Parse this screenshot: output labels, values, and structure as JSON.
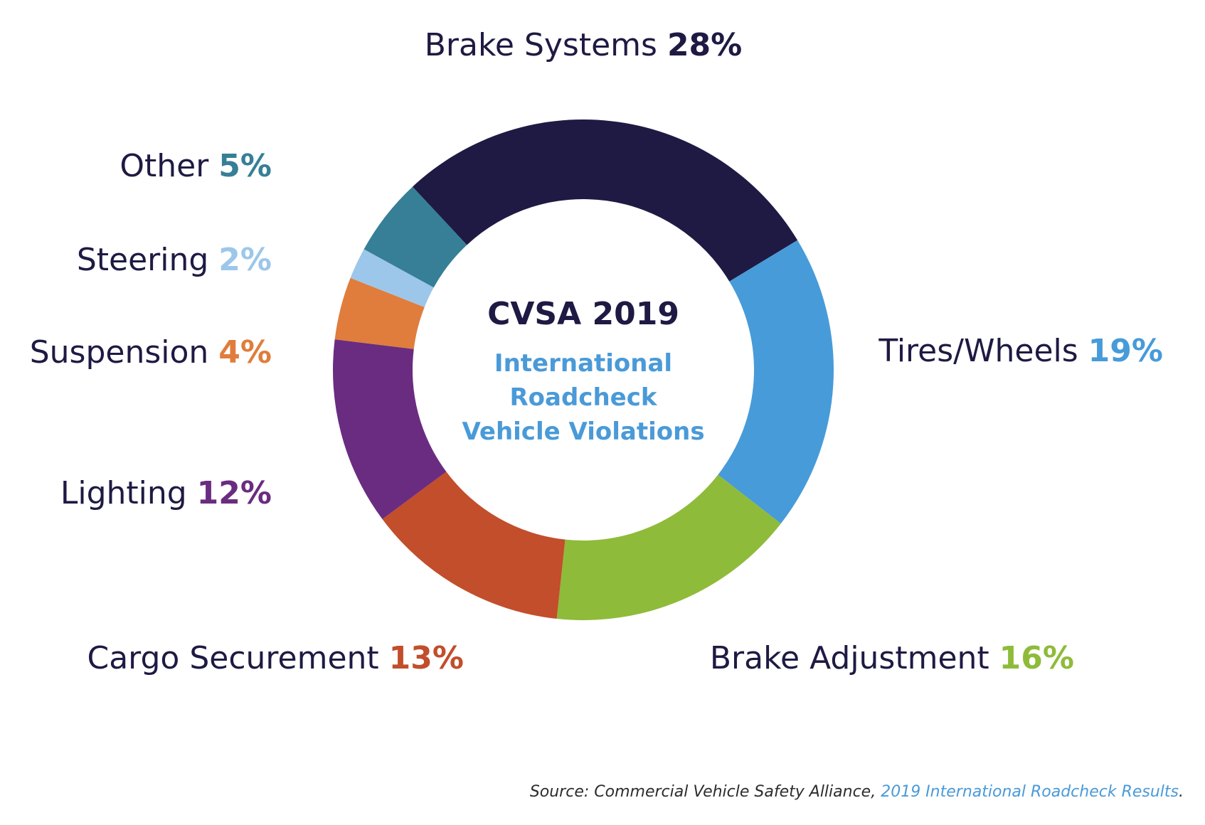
{
  "chart_data": {
    "type": "pie",
    "donut": true,
    "center_title": "CVSA 2019",
    "center_subtitle": [
      "International",
      "Roadcheck",
      "Vehicle Violations"
    ],
    "slices": [
      {
        "label": "Brake Systems",
        "value": 28,
        "value_label": "28%",
        "color": "#1e1a43"
      },
      {
        "label": "Tires/Wheels",
        "value": 19,
        "value_label": "19%",
        "color": "#479bd9"
      },
      {
        "label": "Brake Adjustment",
        "value": 16,
        "value_label": "16%",
        "color": "#8fbb3a"
      },
      {
        "label": "Cargo Securement",
        "value": 13,
        "value_label": "13%",
        "color": "#c24e2b"
      },
      {
        "label": "Lighting",
        "value": 12,
        "value_label": "12%",
        "color": "#6a2c80"
      },
      {
        "label": "Suspension",
        "value": 4,
        "value_label": "4%",
        "color": "#e07d3c"
      },
      {
        "label": "Steering",
        "value": 2,
        "value_label": "2%",
        "color": "#9cc7ea"
      },
      {
        "label": "Other",
        "value": 5,
        "value_label": "5%",
        "color": "#367f96"
      }
    ]
  },
  "source": {
    "prefix": "Source: Commercial Vehicle Safety Alliance, ",
    "link_text": "2019 International Roadcheck Results",
    "suffix": "."
  }
}
